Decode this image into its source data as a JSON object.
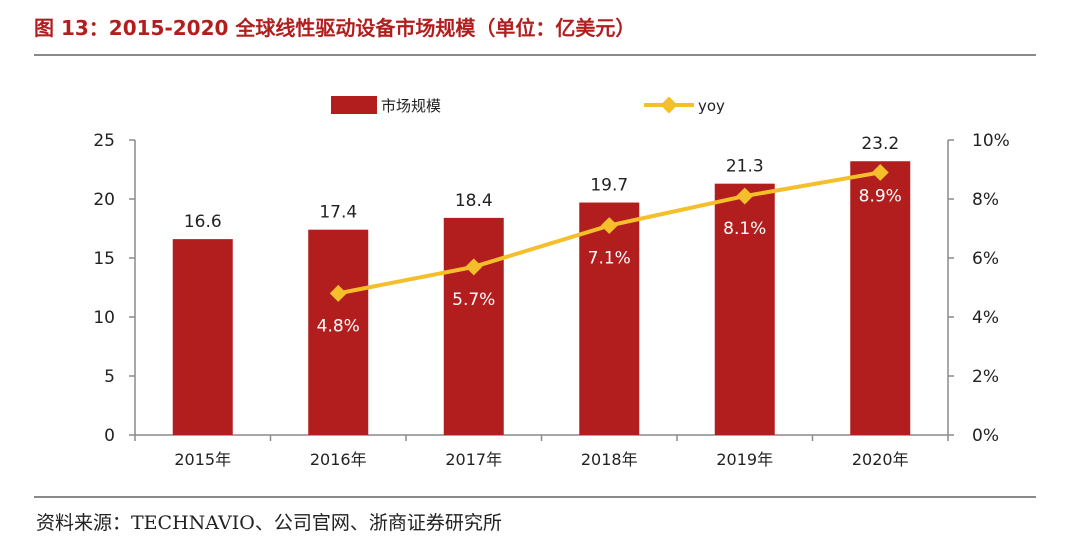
{
  "title": "图 13：2015-2020 全球线性驱动设备市场规模（单位：亿美元）",
  "source": "资料来源：TECHNAVIO、公司官网、浙商证券研究所",
  "colors": {
    "bar": "#b21e1e",
    "line": "#f4bf2a",
    "title": "#b21e1e"
  },
  "chart_data": {
    "type": "bar",
    "categories": [
      "2015年",
      "2016年",
      "2017年",
      "2018年",
      "2019年",
      "2020年"
    ],
    "series": [
      {
        "name": "市场规模",
        "type": "bar",
        "axis": "left",
        "values": [
          16.6,
          17.4,
          18.4,
          19.7,
          21.3,
          23.2
        ]
      },
      {
        "name": "yoy",
        "type": "line",
        "axis": "right",
        "values": [
          null,
          4.8,
          5.7,
          7.1,
          8.1,
          8.9
        ]
      }
    ],
    "bar_labels": [
      "16.6",
      "17.4",
      "18.4",
      "19.7",
      "21.3",
      "23.2"
    ],
    "line_labels": [
      "",
      "4.8%",
      "5.7%",
      "7.1%",
      "8.1%",
      "8.9%"
    ],
    "ylim": [
      0,
      25
    ],
    "yticks": [
      "0",
      "5",
      "10",
      "15",
      "20",
      "25"
    ],
    "y2lim": [
      0,
      10
    ],
    "y2ticks": [
      "0%",
      "2%",
      "4%",
      "6%",
      "8%",
      "10%"
    ],
    "legend": [
      "市场规模",
      "yoy"
    ],
    "legend_position": "top",
    "grid": false
  }
}
